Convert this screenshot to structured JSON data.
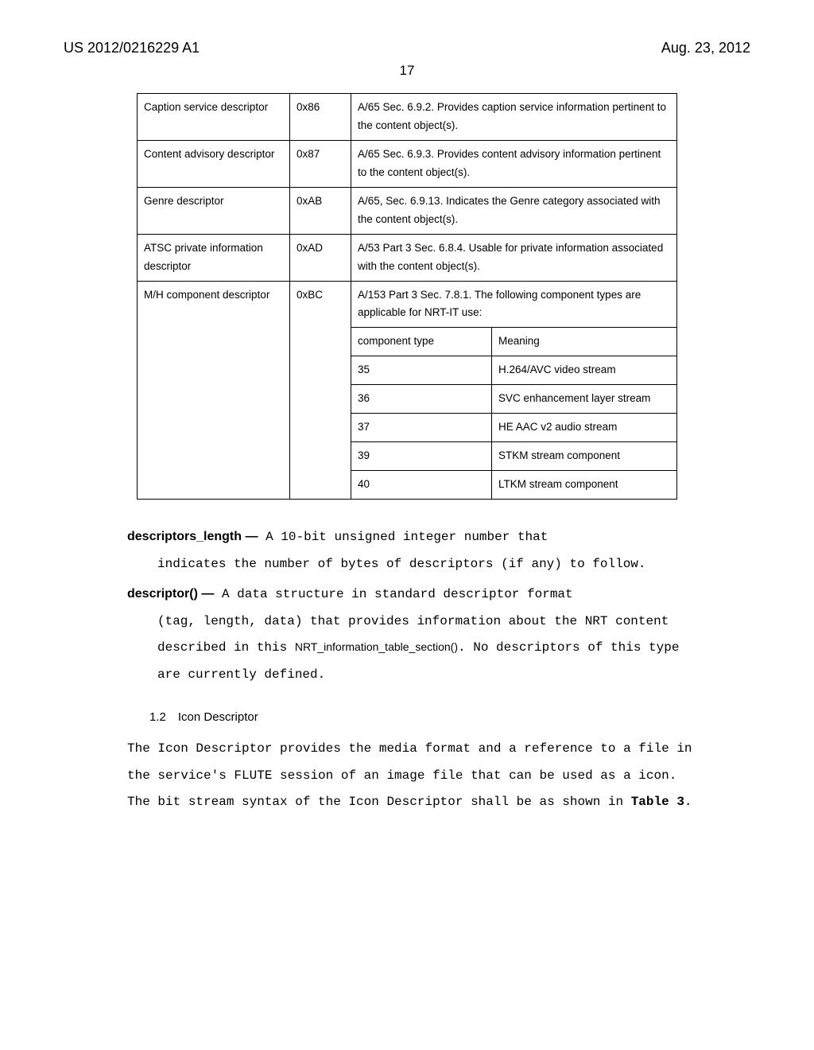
{
  "header": {
    "left": "US 2012/0216229 A1",
    "right": "Aug. 23, 2012"
  },
  "page_number": "17",
  "table": {
    "rows": [
      {
        "c1": "Caption service descriptor",
        "c2": "0x86",
        "desc": "A/65 Sec. 6.9.2. Provides caption service information pertinent to the content object(s)."
      },
      {
        "c1": "Content advisory descriptor",
        "c2": "0x87",
        "desc": "A/65 Sec. 6.9.3. Provides content advisory information pertinent to the content object(s)."
      },
      {
        "c1": "Genre descriptor",
        "c2": "0xAB",
        "desc": "A/65, Sec. 6.9.13. Indicates the Genre category associated with the content object(s)."
      },
      {
        "c1": "ATSC private information descriptor",
        "c2": "0xAD",
        "desc": "A/53 Part 3 Sec. 6.8.4. Usable for private information associated with the content object(s)."
      }
    ],
    "mh": {
      "c1": "M/H component descriptor",
      "c2": "0xBC",
      "desc": "A/153 Part 3 Sec. 7.8.1.  The following component types are applicable for NRT-IT use:",
      "sub_header": {
        "a": "component type",
        "b": "Meaning"
      },
      "sub_rows": [
        {
          "a": "35",
          "b": "H.264/AVC video stream"
        },
        {
          "a": "36",
          "b": "SVC enhancement layer stream"
        },
        {
          "a": "37",
          "b": "HE AAC v2 audio stream"
        },
        {
          "a": "39",
          "b": "STKM stream component"
        },
        {
          "a": "40",
          "b": "LTKM stream component"
        }
      ]
    }
  },
  "defs": {
    "d1_term": "descriptors_length —",
    "d1_lead": " A 10-bit unsigned integer number that",
    "d1_body": "indicates the number of bytes of descriptors (if any) to follow.",
    "d2_term": "descriptor() —",
    "d2_lead": " A data structure in standard descriptor format",
    "d2_body1": "(tag, length, data) that provides information about the NRT content described in this ",
    "d2_code": "NRT_information_table_section()",
    "d2_body2": ". No descriptors of this type are currently defined."
  },
  "section": {
    "head": "1.2 Icon Descriptor",
    "p1": "The Icon Descriptor provides the media format and a reference to a file in the service's FLUTE session of an image file that can be used as a icon. The bit stream syntax of the Icon Descriptor shall be as shown in ",
    "bold": "Table 3",
    "tail": "."
  }
}
